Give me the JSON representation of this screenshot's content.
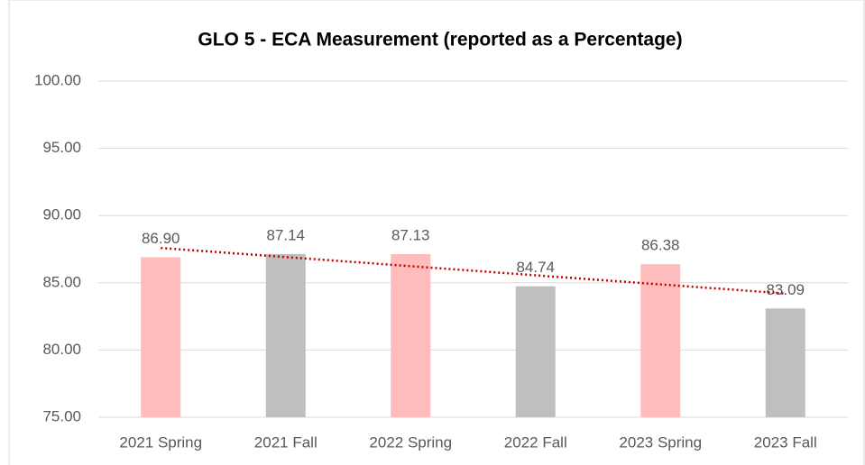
{
  "chart_data": {
    "type": "bar",
    "title": "GLO 5 - ECA Measurement (reported as a Percentage)",
    "categories": [
      "2021 Spring",
      "2021 Fall",
      "2022 Spring",
      "2022 Fall",
      "2023 Spring",
      "2023 Fall"
    ],
    "values": [
      86.9,
      87.14,
      87.13,
      84.74,
      86.38,
      83.09
    ],
    "value_labels": [
      "86.90",
      "87.14",
      "87.13",
      "84.74",
      "86.38",
      "83.09"
    ],
    "colors": [
      "#ffbcbc",
      "#bfbfbf",
      "#ffbcbc",
      "#bfbfbf",
      "#ffbcbc",
      "#bfbfbf"
    ],
    "ylim": [
      75,
      100
    ],
    "yticks": [
      {
        "value": 75,
        "label": "75.00"
      },
      {
        "value": 80,
        "label": "80.00"
      },
      {
        "value": 85,
        "label": "85.00"
      },
      {
        "value": 90,
        "label": "90.00"
      },
      {
        "value": 95,
        "label": "95.00"
      },
      {
        "value": 100,
        "label": "100.00"
      }
    ],
    "grid": true,
    "trendline": "linear",
    "trendline_color": "#c00000"
  }
}
